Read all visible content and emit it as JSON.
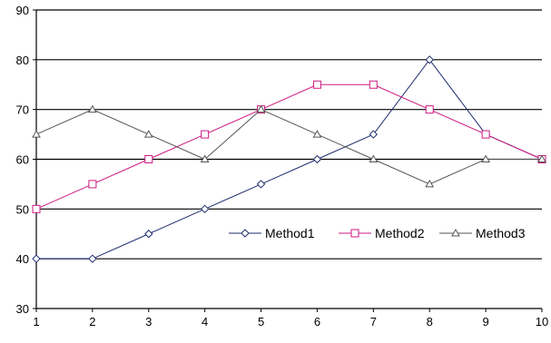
{
  "chart_data": {
    "type": "line",
    "title": "",
    "xlabel": "",
    "ylabel": "",
    "x": [
      1,
      2,
      3,
      4,
      5,
      6,
      7,
      8,
      9,
      10
    ],
    "x_tick_labels": [
      "1",
      "2",
      "3",
      "4",
      "5",
      "6",
      "7",
      "8",
      "9",
      "10"
    ],
    "ylim": [
      30,
      90
    ],
    "y_ticks": [
      30,
      40,
      50,
      60,
      70,
      80,
      90
    ],
    "y_tick_labels": [
      "30",
      "40",
      "50",
      "60",
      "70",
      "80",
      "90"
    ],
    "grid": "horizontal",
    "legend_position": "center-right",
    "series": [
      {
        "name": "Method1",
        "color": "#1f2d6e",
        "marker": "diamond",
        "values": [
          40,
          40,
          45,
          50,
          55,
          60,
          65,
          80,
          65,
          60
        ]
      },
      {
        "name": "Method2",
        "color": "#cc1a80",
        "marker": "square",
        "values": [
          50,
          55,
          60,
          65,
          70,
          75,
          75,
          70,
          65,
          60
        ]
      },
      {
        "name": "Method3",
        "color": "#555555",
        "marker": "triangle",
        "values": [
          65,
          70,
          65,
          60,
          70,
          65,
          60,
          55,
          60,
          60
        ]
      }
    ]
  }
}
